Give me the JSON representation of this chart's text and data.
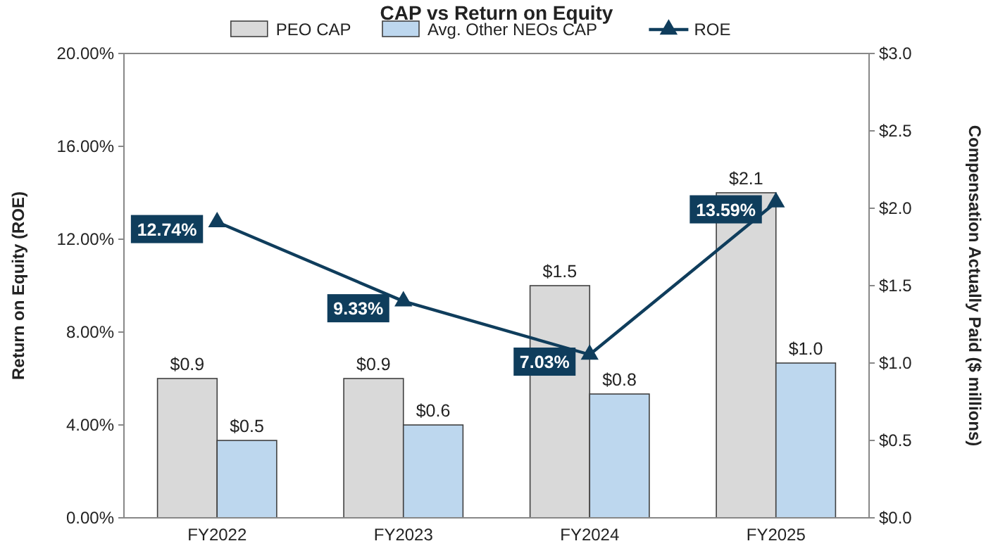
{
  "chart_data": {
    "type": "bar",
    "title": "CAP vs Return on Equity",
    "ylabel": "Return on Equity (ROE)",
    "y2label": "Compensation Actually Paid ($ millions)",
    "categories": [
      "FY2022",
      "FY2023",
      "FY2024",
      "FY2025"
    ],
    "series": [
      {
        "name": "PEO CAP",
        "color": "#d9d9d9",
        "axis": "y2",
        "values": [
          0.9,
          0.9,
          1.5,
          2.1
        ],
        "value_labels": [
          "$0.9",
          "$0.9",
          "$1.5",
          "$2.1"
        ]
      },
      {
        "name": "Avg. Other NEOs CAP",
        "color": "#bdd7ee",
        "axis": "y2",
        "values": [
          0.5,
          0.6,
          0.8,
          1.0
        ],
        "value_labels": [
          "$0.5",
          "$0.6",
          "$0.8",
          "$1.0"
        ]
      },
      {
        "name": "ROE",
        "type": "line",
        "color": "#0f3d5c",
        "marker": "triangle",
        "values": [
          12.74,
          9.33,
          7.03,
          13.59
        ],
        "value_labels": [
          "12.74%",
          "9.33%",
          "7.03%",
          "13.59%"
        ]
      }
    ],
    "ylim": [
      0,
      20
    ],
    "yticks": [
      {
        "value": 0,
        "label": "0.00%"
      },
      {
        "value": 4,
        "label": "4.00%"
      },
      {
        "value": 8,
        "label": "8.00%"
      },
      {
        "value": 12,
        "label": "12.00%"
      },
      {
        "value": 16,
        "label": "16.00%"
      },
      {
        "value": 20,
        "label": "20.00%"
      }
    ],
    "y2lim": [
      0,
      3
    ],
    "y2ticks": [
      {
        "value": 0,
        "label": "$0.0"
      },
      {
        "value": 0.5,
        "label": "$0.5"
      },
      {
        "value": 1,
        "label": "$1.0"
      },
      {
        "value": 1.5,
        "label": "$1.5"
      },
      {
        "value": 2,
        "label": "$2.0"
      },
      {
        "value": 2.5,
        "label": "$2.5"
      },
      {
        "value": 3,
        "label": "$3.0"
      }
    ],
    "legend": "top",
    "grid": false
  }
}
